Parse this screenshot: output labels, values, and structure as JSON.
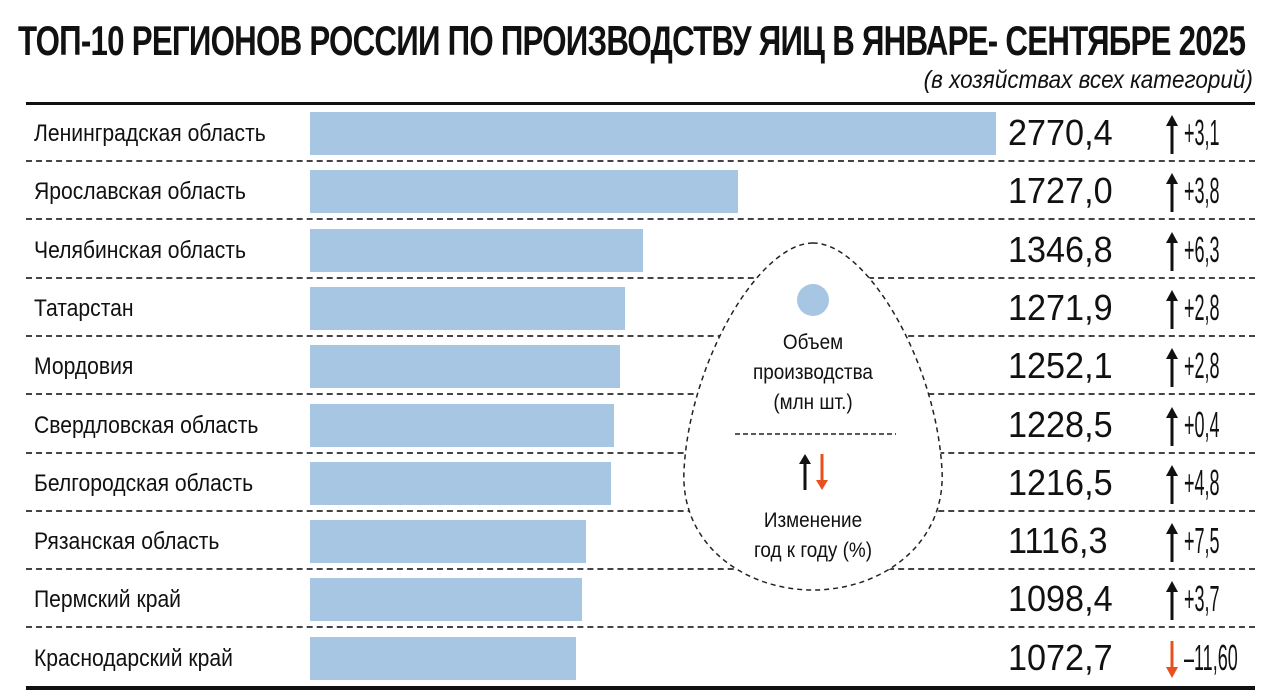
{
  "chart_data": {
    "type": "bar",
    "orientation": "horizontal",
    "title": "ТОП-10 РЕГИОНОВ РОССИИ ПО ПРОИЗВОДСТВУ ЯИЦ В ЯНВАРЕ- СЕНТЯБРЕ 2025",
    "subtitle": "(в хозяйствах всех категорий)",
    "categories": [
      "Ленинградская область",
      "Ярославская область",
      "Челябинская область",
      "Татарстан",
      "Мордовия",
      "Свердловская область",
      "Белгородская область",
      "Рязанская область",
      "Пермский край",
      "Краснодарский край"
    ],
    "values": [
      2770.4,
      1727.0,
      1346.8,
      1271.9,
      1252.1,
      1228.5,
      1216.5,
      1116.3,
      1098.4,
      1072.7
    ],
    "value_labels": [
      "2770,4",
      "1727,0",
      "1346,8",
      "1271,9",
      "1252,1",
      "1228,5",
      "1216,5",
      "1116,3",
      "1098,4",
      "1072,7"
    ],
    "change_yoy": [
      3.1,
      3.8,
      6.3,
      2.8,
      2.8,
      0.4,
      4.8,
      7.5,
      3.7,
      -11.6
    ],
    "change_labels": [
      "+3,1",
      "+3,8",
      "+6,3",
      "+2,8",
      "+2,8",
      "+0,4",
      "+4,8",
      "+7,5",
      "+3,7",
      "–11,60"
    ],
    "xlim": [
      0,
      2770.4
    ],
    "grid": false,
    "legend": {
      "placement": "center",
      "volume_label": "Объем производства (млн шт.)",
      "volume_lines": [
        "Объем",
        "производства",
        "(млн шт.)"
      ],
      "change_lines": [
        "Изменение",
        "год к году (%)"
      ]
    },
    "colors": {
      "bar": "#a6c6e3",
      "up": "#111111",
      "down": "#e8501e"
    }
  }
}
